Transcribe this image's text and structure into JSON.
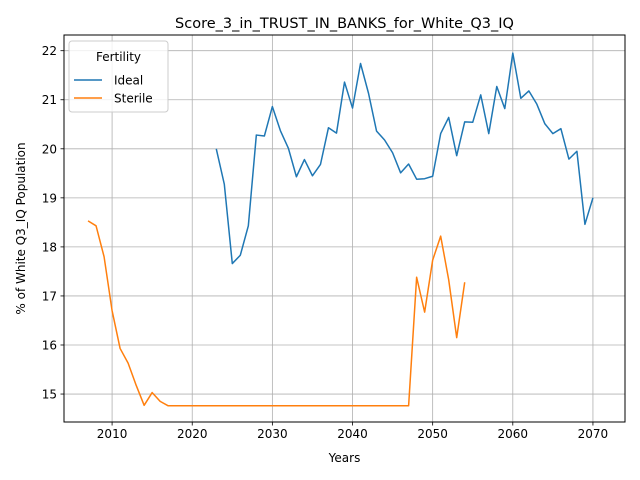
{
  "chart_data": {
    "type": "line",
    "title": "Score_3_in_TRUST_IN_BANKS_for_White_Q3_IQ",
    "xlabel": "Years",
    "ylabel": "% of White Q3_IQ Population",
    "xlim": [
      2004,
      2074
    ],
    "ylim": [
      14.43,
      22.32
    ],
    "xticks": [
      2010,
      2020,
      2030,
      2040,
      2050,
      2060,
      2070
    ],
    "yticks": [
      15,
      16,
      17,
      18,
      19,
      20,
      21,
      22
    ],
    "grid": true,
    "legend": {
      "title": "Fertility",
      "position": "top-left"
    },
    "series": [
      {
        "name": "Ideal",
        "color": "#1f77b4",
        "x": [
          2023,
          2024,
          2025,
          2026,
          2027,
          2028,
          2029,
          2030,
          2031,
          2032,
          2033,
          2034,
          2035,
          2036,
          2037,
          2038,
          2039,
          2040,
          2041,
          2042,
          2043,
          2044,
          2045,
          2046,
          2047,
          2048,
          2049,
          2050,
          2051,
          2052,
          2053,
          2054,
          2055,
          2056,
          2057,
          2058,
          2059,
          2060,
          2061,
          2062,
          2063,
          2064,
          2065,
          2066,
          2067,
          2068,
          2069,
          2070
        ],
        "y": [
          20.0,
          19.28,
          17.66,
          17.83,
          18.43,
          20.28,
          20.26,
          20.86,
          20.37,
          20.01,
          19.43,
          19.78,
          19.45,
          19.68,
          20.43,
          20.32,
          21.36,
          20.83,
          21.74,
          21.13,
          20.36,
          20.18,
          19.92,
          19.51,
          19.69,
          19.38,
          19.39,
          19.44,
          20.31,
          20.64,
          19.86,
          20.55,
          20.54,
          21.1,
          20.31,
          21.27,
          20.82,
          21.95,
          21.03,
          21.18,
          20.91,
          20.51,
          20.31,
          20.41,
          19.79,
          19.95,
          18.46,
          19.0
        ]
      },
      {
        "name": "Sterile",
        "color": "#ff7f0e",
        "x": [
          2007,
          2008,
          2009,
          2010,
          2011,
          2012,
          2013,
          2014,
          2015,
          2016,
          2017,
          2018,
          2019,
          2020,
          2021,
          2022,
          2023,
          2024,
          2025,
          2026,
          2027,
          2028,
          2029,
          2030,
          2031,
          2032,
          2033,
          2034,
          2035,
          2036,
          2037,
          2038,
          2039,
          2040,
          2041,
          2042,
          2043,
          2044,
          2045,
          2046,
          2047,
          2048,
          2049,
          2050,
          2051,
          2052,
          2053,
          2054
        ],
        "y": [
          18.53,
          18.43,
          17.8,
          16.7,
          15.93,
          15.63,
          15.18,
          14.77,
          15.03,
          14.85,
          14.76,
          14.76,
          14.76,
          14.76,
          14.76,
          14.76,
          14.76,
          14.76,
          14.76,
          14.76,
          14.76,
          14.76,
          14.76,
          14.76,
          14.76,
          14.76,
          14.76,
          14.76,
          14.76,
          14.76,
          14.76,
          14.76,
          14.76,
          14.76,
          14.76,
          14.76,
          14.76,
          14.76,
          14.76,
          14.76,
          14.76,
          17.38,
          16.67,
          17.73,
          18.22,
          17.33,
          16.15,
          17.28
        ]
      }
    ]
  }
}
